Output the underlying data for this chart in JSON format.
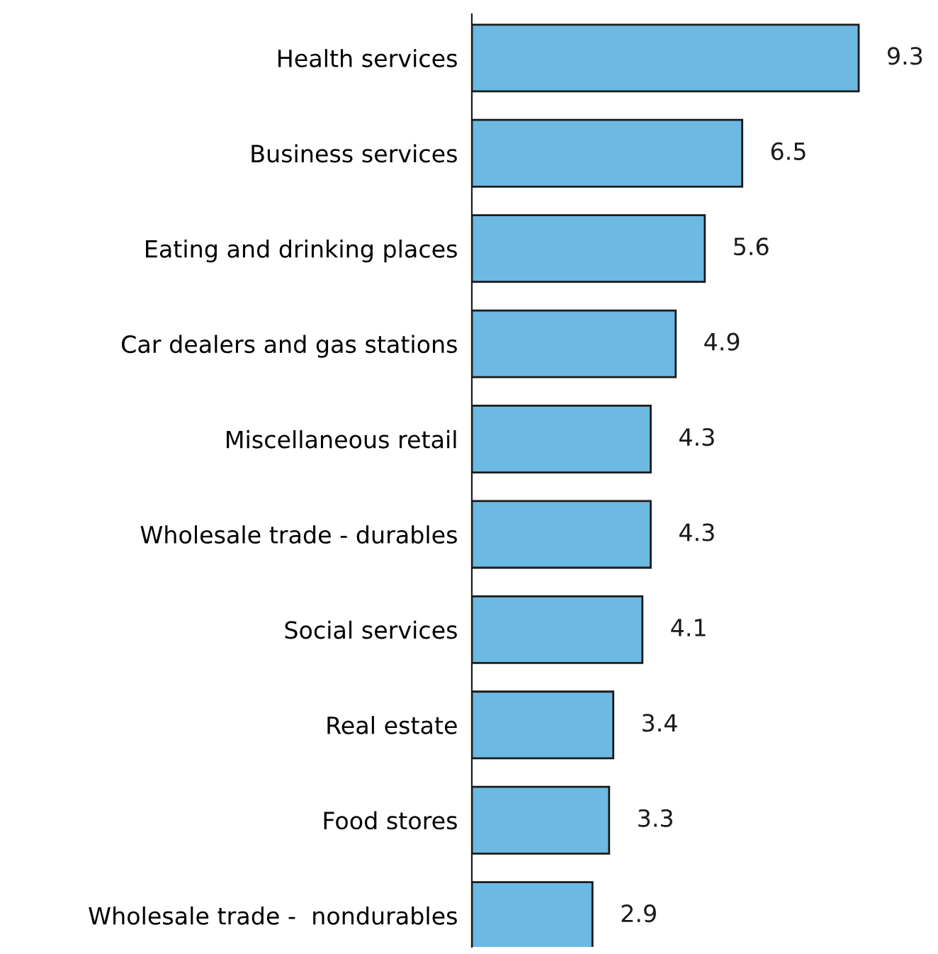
{
  "chart_data": {
    "type": "bar",
    "orientation": "horizontal",
    "categories": [
      "Health services",
      "Business services",
      "Eating and drinking places",
      "Car dealers and gas stations",
      "Miscellaneous retail",
      "Wholesale trade - durables",
      "Social services",
      "Real estate",
      "Food stores",
      "Wholesale trade -  nondurables"
    ],
    "values": [
      9.3,
      6.5,
      5.6,
      4.9,
      4.3,
      4.3,
      4.1,
      3.4,
      3.3,
      2.9
    ],
    "color": "#6cb9e2",
    "data_labels": true,
    "grid": false,
    "legend": false,
    "tick_labels": "y"
  }
}
